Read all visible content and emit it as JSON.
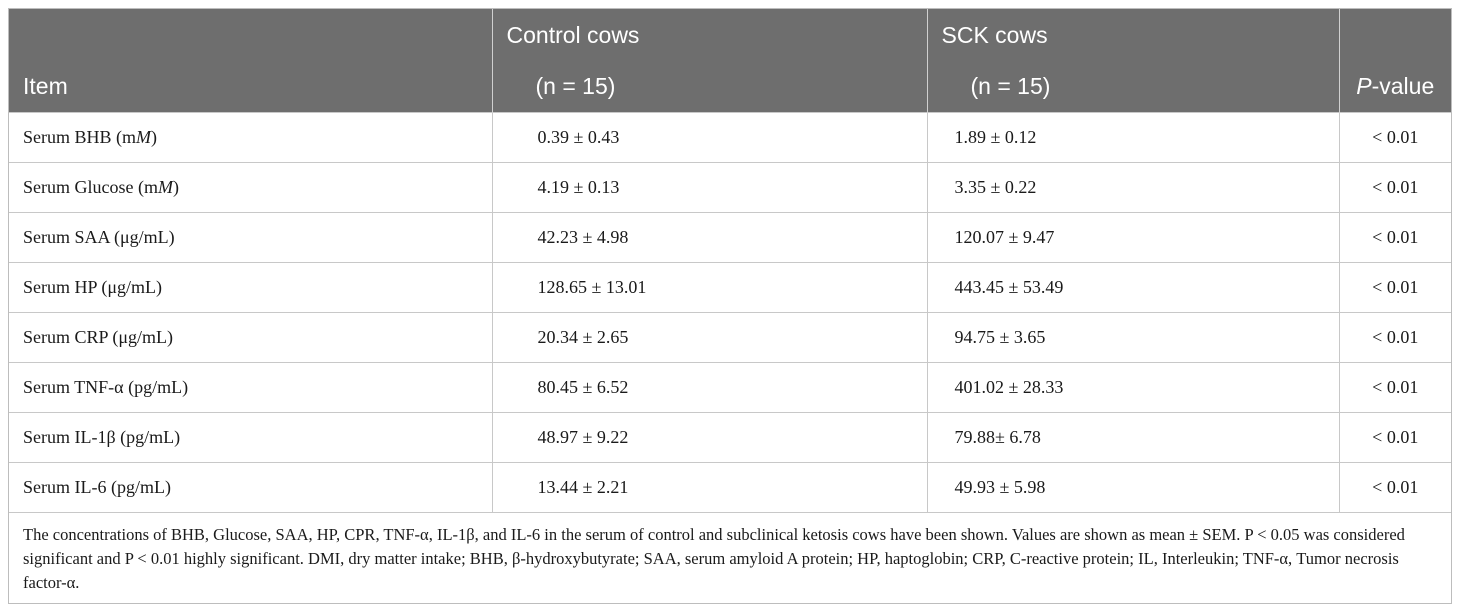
{
  "header": {
    "item": "Item",
    "control_label": "Control cows",
    "control_n": "(n = 15)",
    "sck_label": "SCK cows",
    "sck_n": "(n = 15)",
    "pvalue_italic": "P",
    "pvalue_rest": "-value"
  },
  "rows": [
    {
      "item": "Serum BHB (m",
      "item_italic": "M",
      "item_tail": ")",
      "control": "0.39 ± 0.43",
      "sck": "1.89 ± 0.12",
      "p": "< 0.01"
    },
    {
      "item": "Serum Glucose (m",
      "item_italic": "M",
      "item_tail": ")",
      "control": "4.19 ± 0.13",
      "sck": "3.35 ± 0.22",
      "p": "< 0.01"
    },
    {
      "item": "Serum SAA (μg/mL)",
      "item_italic": "",
      "item_tail": "",
      "control": "42.23 ± 4.98",
      "sck": "120.07 ± 9.47",
      "p": "< 0.01"
    },
    {
      "item": "Serum HP (μg/mL)",
      "item_italic": "",
      "item_tail": "",
      "control": "128.65 ± 13.01",
      "sck": "443.45 ± 53.49",
      "p": "< 0.01"
    },
    {
      "item": "Serum CRP (μg/mL)",
      "item_italic": "",
      "item_tail": "",
      "control": "20.34 ± 2.65",
      "sck": "94.75 ± 3.65",
      "p": "< 0.01"
    },
    {
      "item": "Serum TNF-α (pg/mL)",
      "item_italic": "",
      "item_tail": "",
      "control": "80.45 ± 6.52",
      "sck": "401.02 ± 28.33",
      "p": "< 0.01"
    },
    {
      "item": "Serum IL-1β (pg/mL)",
      "item_italic": "",
      "item_tail": "",
      "control": "48.97 ± 9.22",
      "sck": "79.88± 6.78",
      "p": "< 0.01"
    },
    {
      "item": "Serum IL-6 (pg/mL)",
      "item_italic": "",
      "item_tail": "",
      "control": "13.44 ± 2.21",
      "sck": "49.93 ± 5.98",
      "p": "< 0.01"
    }
  ],
  "footnote": "The concentrations of BHB, Glucose, SAA, HP, CPR, TNF-α, IL-1β, and IL-6 in the serum of control and subclinical ketosis cows have been shown. Values are shown as mean ± SEM. P < 0.05 was considered significant and P < 0.01 highly significant. DMI, dry matter intake; BHB, β-hydroxybutyrate; SAA, serum amyloid A protein; HP, haptoglobin; CRP, C-reactive protein; IL, Interleukin; TNF-α, Tumor necrosis factor-α."
}
